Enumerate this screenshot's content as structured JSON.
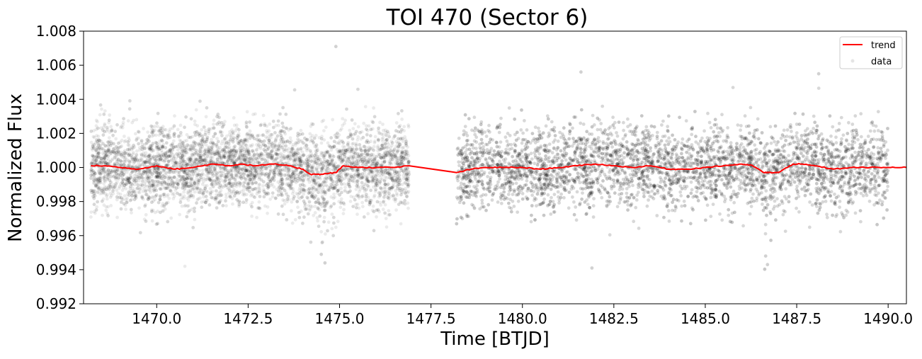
{
  "chart_data": {
    "type": "scatter",
    "title": "TOI 470 (Sector 6)",
    "xlabel": "Time [BTJD]",
    "ylabel": "Normalized Flux",
    "xlim": [
      1468.0,
      1490.5
    ],
    "ylim": [
      0.992,
      1.008
    ],
    "x_ticks": [
      1470.0,
      1472.5,
      1475.0,
      1477.5,
      1480.0,
      1482.5,
      1485.0,
      1487.5,
      1490.0
    ],
    "x_tick_labels": [
      "1470.0",
      "1472.5",
      "1475.0",
      "1477.5",
      "1480.0",
      "1482.5",
      "1485.0",
      "1487.5",
      "1490.0"
    ],
    "y_ticks": [
      0.992,
      0.994,
      0.996,
      0.998,
      1.0,
      1.002,
      1.004,
      1.006,
      1.008
    ],
    "y_tick_labels": [
      "0.992",
      "0.994",
      "0.996",
      "0.998",
      "1.000",
      "1.002",
      "1.004",
      "1.006",
      "1.008"
    ],
    "grid": false,
    "legend": {
      "placement": "top-right",
      "entries": [
        "trend",
        "data"
      ]
    },
    "series": [
      {
        "name": "trend",
        "kind": "line",
        "color": "#ff0000",
        "x": [
          1468.2,
          1468.6,
          1469.0,
          1469.5,
          1470.0,
          1470.5,
          1471.0,
          1471.5,
          1472.0,
          1472.3,
          1472.7,
          1473.2,
          1473.6,
          1474.0,
          1474.2,
          1474.5,
          1474.9,
          1475.1,
          1475.5,
          1476.0,
          1476.5,
          1476.9,
          1478.2,
          1478.6,
          1479.0,
          1479.5,
          1480.0,
          1480.5,
          1481.0,
          1481.5,
          1482.0,
          1482.5,
          1483.0,
          1483.5,
          1484.0,
          1484.5,
          1485.0,
          1485.5,
          1486.0,
          1486.3,
          1486.6,
          1486.8,
          1487.0,
          1487.4,
          1487.6,
          1488.0,
          1488.5,
          1489.0,
          1489.5,
          1490.0,
          1490.5
        ],
        "y": [
          1.0001,
          1.0001,
          1.0,
          0.9999,
          1.0001,
          0.9999,
          1.0,
          1.0002,
          1.0001,
          1.0002,
          1.0001,
          1.0002,
          1.0001,
          0.9999,
          0.9996,
          0.9996,
          0.9997,
          1.0001,
          1.0,
          1.0,
          1.0,
          1.0001,
          0.9997,
          0.9999,
          1.0,
          1.0,
          1.0,
          0.9999,
          1.0,
          1.0001,
          1.0002,
          1.0001,
          1.0,
          1.0001,
          0.9999,
          0.9999,
          1.0,
          1.0001,
          1.0002,
          1.0001,
          0.9997,
          0.9997,
          0.9997,
          1.0002,
          1.0002,
          1.0001,
          0.9999,
          1.0,
          1.0,
          1.0,
          1.0
        ]
      },
      {
        "name": "data",
        "kind": "scatter",
        "color": "#000000",
        "opacity": 0.08,
        "segments": [
          [
            1468.2,
            1476.9
          ],
          [
            1478.2,
            1490.0
          ]
        ],
        "count": 14000,
        "center": 1.0,
        "spread_sigma": 0.0012,
        "dips": [
          {
            "x": 1474.55,
            "width": 0.3,
            "depth": 0.0006
          },
          {
            "x": 1486.65,
            "width": 0.3,
            "depth": 0.0006
          }
        ],
        "notable_points": [
          {
            "x": 1474.6,
            "y": 0.9944
          },
          {
            "x": 1474.5,
            "y": 0.9949
          },
          {
            "x": 1474.9,
            "y": 1.0071
          },
          {
            "x": 1481.6,
            "y": 1.0056
          },
          {
            "x": 1486.7,
            "y": 0.9943
          },
          {
            "x": 1486.65,
            "y": 0.9948
          },
          {
            "x": 1481.9,
            "y": 0.9941
          },
          {
            "x": 1488.1,
            "y": 1.0055
          }
        ]
      }
    ]
  }
}
